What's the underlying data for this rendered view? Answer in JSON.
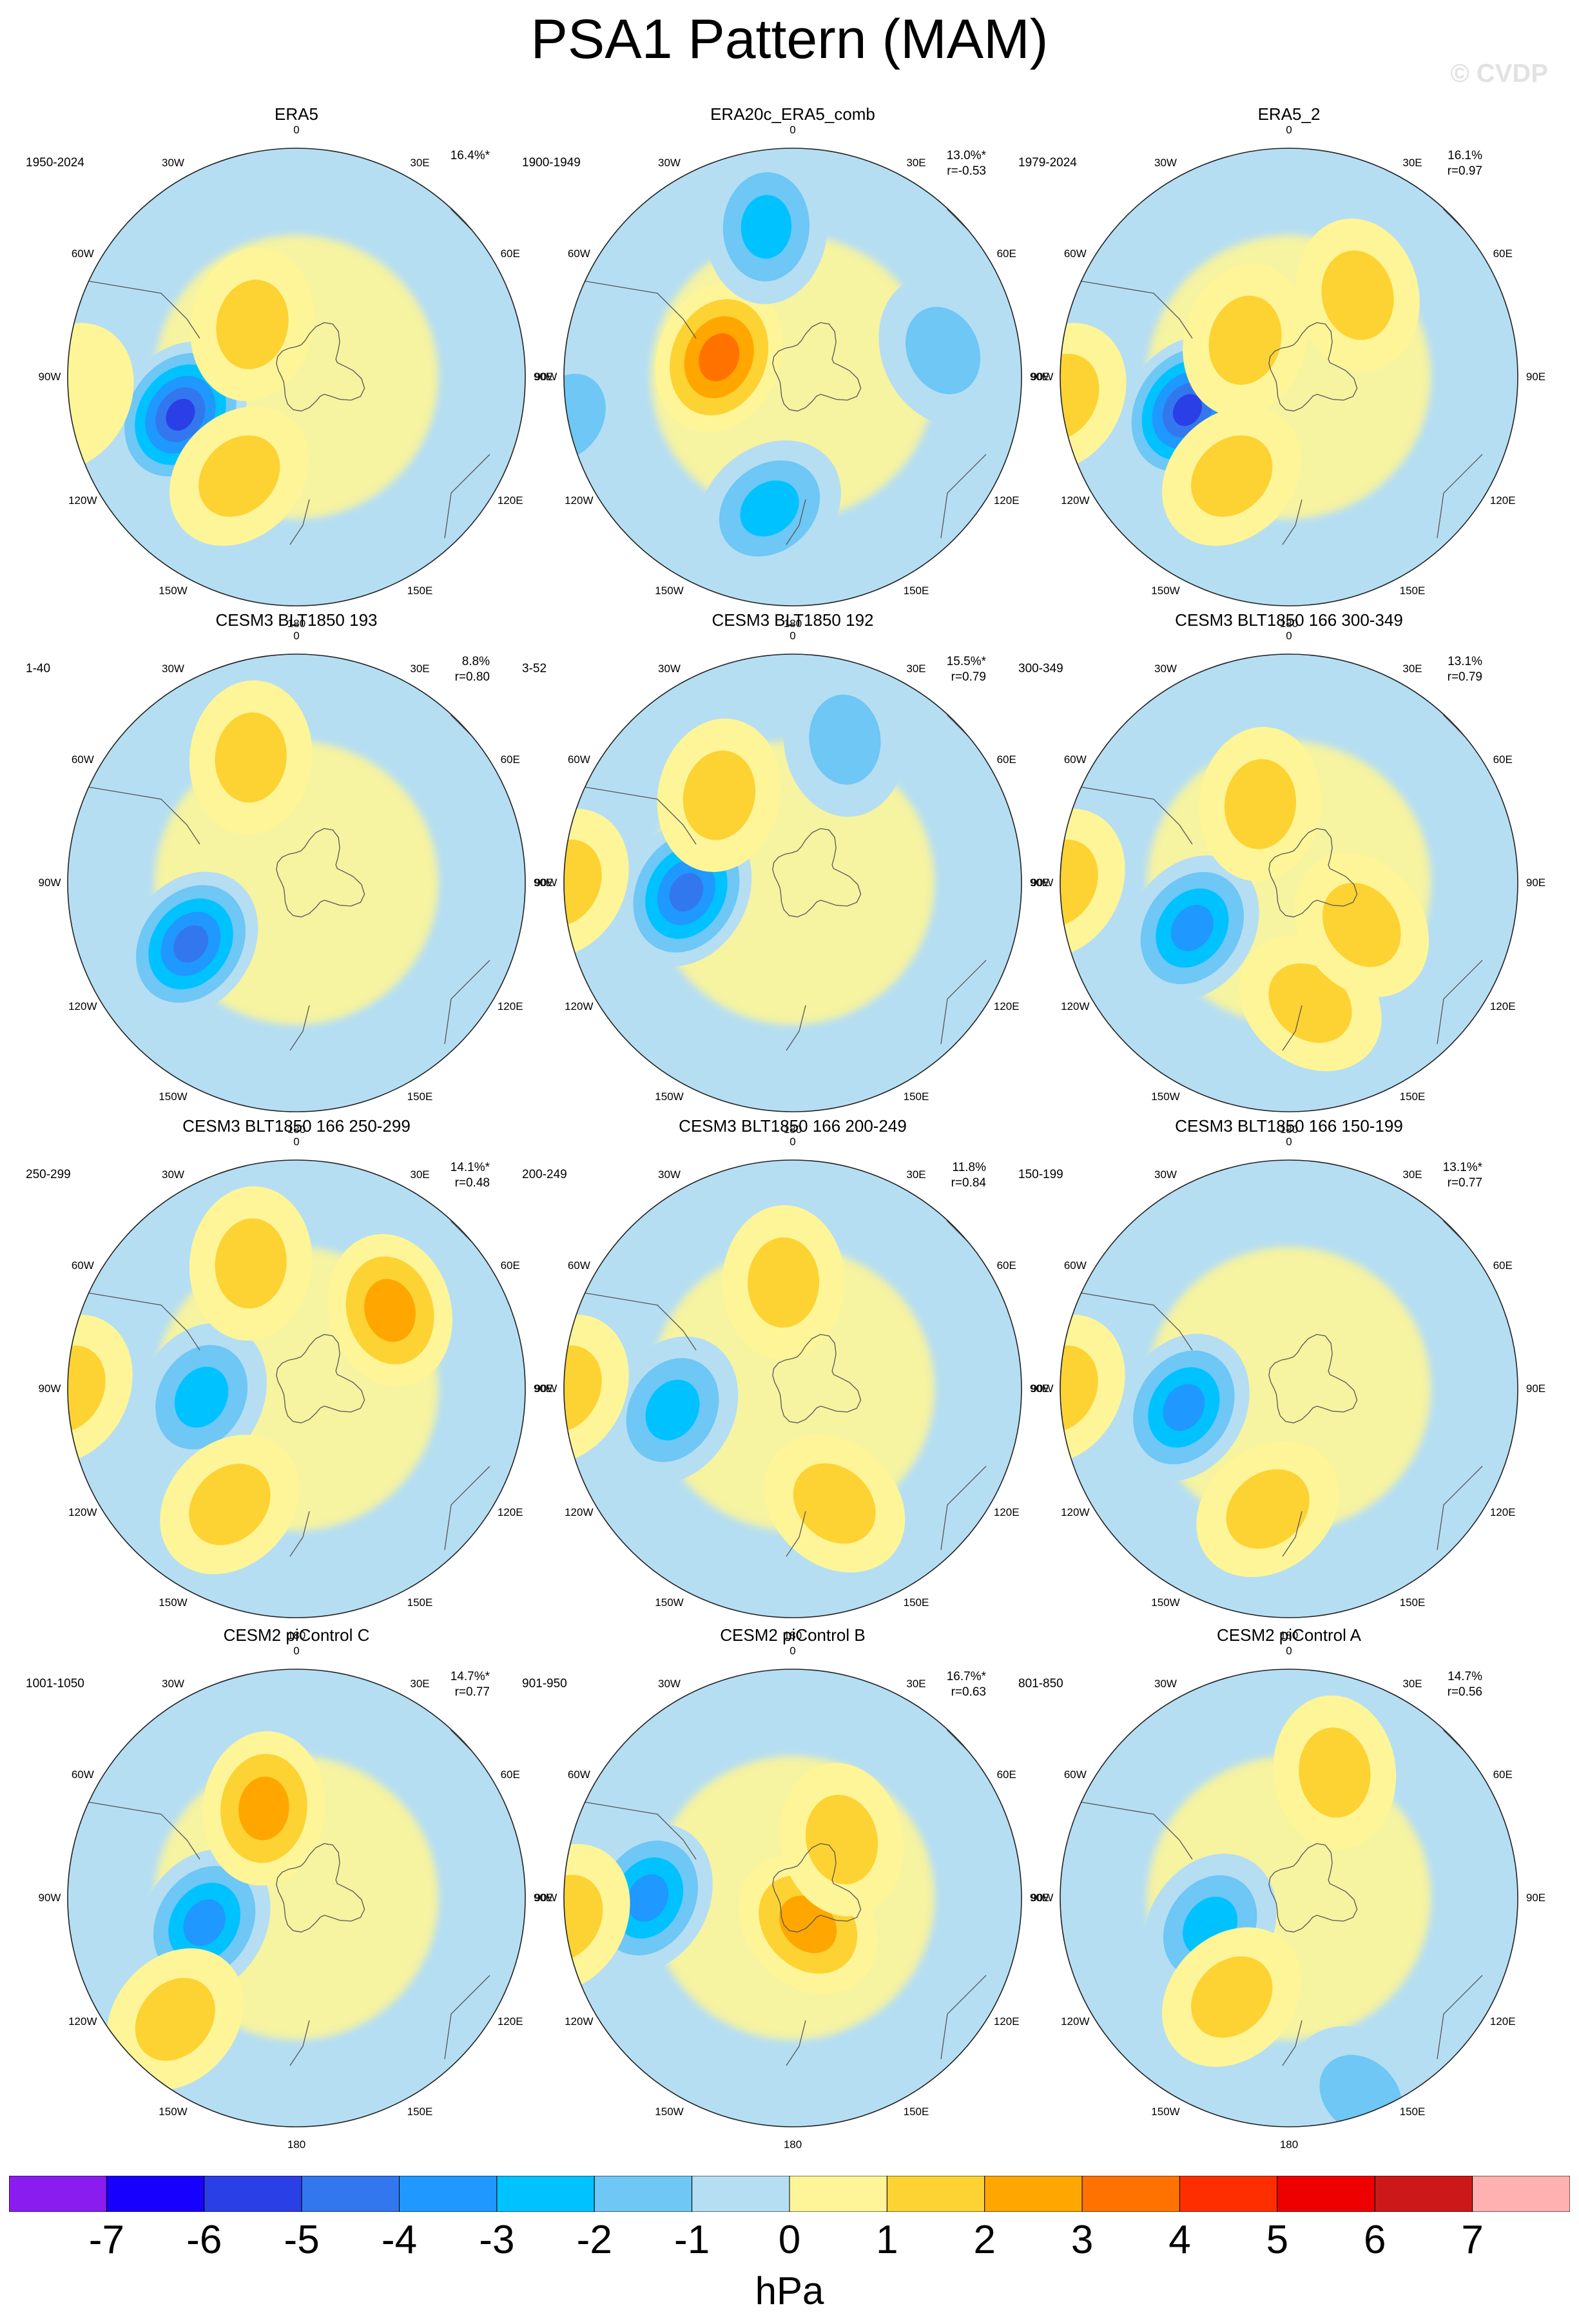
{
  "title": "PSA1 Pattern (MAM)",
  "watermark": "© CVDP",
  "lon_labels": [
    "0",
    "30E",
    "60E",
    "90E",
    "120E",
    "150E",
    "180",
    "150W",
    "120W",
    "90W",
    "60W",
    "30W"
  ],
  "panels": [
    {
      "title": "ERA5",
      "period": "1950-2024",
      "pct": "16.4%*",
      "r": "",
      "blobs": [
        {
          "lon": -108,
          "lat": -58,
          "value": -6
        },
        {
          "lon": -150,
          "lat": -60,
          "value": 2
        },
        {
          "lon": -40,
          "lat": -72,
          "value": 1.5
        },
        {
          "lon": -95,
          "lat": -30,
          "value": 1
        }
      ]
    },
    {
      "title": "ERA20c_ERA5_comb",
      "period": "1900-1949",
      "pct": "13.0%*",
      "r": "r=-0.53",
      "blobs": [
        {
          "lon": -75,
          "lat": -70,
          "value": 4
        },
        {
          "lon": -10,
          "lat": -50,
          "value": -3
        },
        {
          "lon": -170,
          "lat": -55,
          "value": -3
        },
        {
          "lon": 80,
          "lat": -50,
          "value": -2
        },
        {
          "lon": -100,
          "lat": -30,
          "value": -1.5
        }
      ]
    },
    {
      "title": "ERA5_2",
      "period": "1979-2024",
      "pct": "16.1%",
      "r": "r=0.97",
      "blobs": [
        {
          "lon": -108,
          "lat": -62,
          "value": -6
        },
        {
          "lon": -150,
          "lat": -60,
          "value": 1.5
        },
        {
          "lon": -50,
          "lat": -75,
          "value": 1.5
        },
        {
          "lon": 40,
          "lat": -62,
          "value": 1.2
        },
        {
          "lon": -95,
          "lat": -30,
          "value": 1.2
        }
      ]
    },
    {
      "title": "CESM3 BLT1850 193",
      "period": "1-40",
      "pct": "8.8%",
      "r": "r=0.80",
      "blobs": [
        {
          "lon": -120,
          "lat": -58,
          "value": -5
        },
        {
          "lon": -20,
          "lat": -55,
          "value": 1.2
        }
      ]
    },
    {
      "title": "CESM3 BLT1850 192",
      "period": "3-52",
      "pct": "15.5%*",
      "r": "r=0.79",
      "blobs": [
        {
          "lon": -95,
          "lat": -62,
          "value": -5
        },
        {
          "lon": -40,
          "lat": -60,
          "value": 1.5
        },
        {
          "lon": 20,
          "lat": -50,
          "value": -1.5
        },
        {
          "lon": -90,
          "lat": -30,
          "value": 1.5
        }
      ]
    },
    {
      "title": "CESM3 BLT1850 166 300-349",
      "period": "300-349",
      "pct": "13.1%",
      "r": "r=0.79",
      "blobs": [
        {
          "lon": -115,
          "lat": -62,
          "value": -4
        },
        {
          "lon": -90,
          "lat": -30,
          "value": 1.5
        },
        {
          "lon": 170,
          "lat": -58,
          "value": 1.5
        },
        {
          "lon": 120,
          "lat": -68,
          "value": 1.5
        },
        {
          "lon": -20,
          "lat": -68,
          "value": 1.5
        }
      ]
    },
    {
      "title": "CESM3 BLT1850 166 250-299",
      "period": "250-299",
      "pct": "14.1%*",
      "r": "r=0.48",
      "blobs": [
        {
          "lon": -95,
          "lat": -65,
          "value": -3
        },
        {
          "lon": 50,
          "lat": -58,
          "value": 2.5
        },
        {
          "lon": -20,
          "lat": -55,
          "value": 1.5
        },
        {
          "lon": -150,
          "lat": -55,
          "value": 1.5
        },
        {
          "lon": -90,
          "lat": -30,
          "value": 1.5
        }
      ]
    },
    {
      "title": "CESM3 BLT1850 166 200-249",
      "period": "200-249",
      "pct": "11.8%",
      "r": "r=0.84",
      "blobs": [
        {
          "lon": -100,
          "lat": -58,
          "value": -3
        },
        {
          "lon": -5,
          "lat": -62,
          "value": 1.5
        },
        {
          "lon": 160,
          "lat": -58,
          "value": 1.5
        },
        {
          "lon": -90,
          "lat": -30,
          "value": 1.2
        }
      ]
    },
    {
      "title": "CESM3 BLT1850 166 150-199",
      "period": "150-199",
      "pct": "13.1%*",
      "r": "r=0.77",
      "blobs": [
        {
          "lon": -100,
          "lat": -62,
          "value": -4
        },
        {
          "lon": -170,
          "lat": -58,
          "value": 1.5
        },
        {
          "lon": -90,
          "lat": -30,
          "value": 1.2
        }
      ]
    },
    {
      "title": "CESM2 piControl C",
      "period": "1001-1050",
      "pct": "14.7%*",
      "r": "r=0.77",
      "blobs": [
        {
          "lon": -105,
          "lat": -65,
          "value": -4
        },
        {
          "lon": -20,
          "lat": -65,
          "value": 2.5
        },
        {
          "lon": -135,
          "lat": -45,
          "value": 1.5
        }
      ]
    },
    {
      "title": "CESM2 piControl B",
      "period": "901-950",
      "pct": "16.7%*",
      "r": "r=0.63",
      "blobs": [
        {
          "lon": -90,
          "lat": -52,
          "value": -4
        },
        {
          "lon": 150,
          "lat": -82,
          "value": 2.5
        },
        {
          "lon": 40,
          "lat": -70,
          "value": 1.5
        },
        {
          "lon": -95,
          "lat": -30,
          "value": 1.5
        }
      ]
    },
    {
      "title": "CESM2 piControl A",
      "period": "801-850",
      "pct": "14.7%",
      "r": "r=0.56",
      "blobs": [
        {
          "lon": -110,
          "lat": -68,
          "value": -3
        },
        {
          "lon": 20,
          "lat": -55,
          "value": 1.5
        },
        {
          "lon": 160,
          "lat": -35,
          "value": -1.5
        },
        {
          "lon": -150,
          "lat": -60,
          "value": 1.2
        }
      ]
    }
  ],
  "colorbar": {
    "units": "hPa",
    "ticks": [
      "-7",
      "-6",
      "-5",
      "-4",
      "-3",
      "-2",
      "-1",
      "0",
      "1",
      "2",
      "3",
      "4",
      "5",
      "6",
      "7"
    ],
    "colors": [
      "#8a1cf0",
      "#1800ff",
      "#2b3fe6",
      "#3377ee",
      "#1f98ff",
      "#00c2ff",
      "#6ec7f5",
      "#b5def3",
      "#fdf598",
      "#fdd233",
      "#ffa600",
      "#ff7200",
      "#ff2e00",
      "#ee0000",
      "#cc1818",
      "#ffb0b0"
    ]
  }
}
